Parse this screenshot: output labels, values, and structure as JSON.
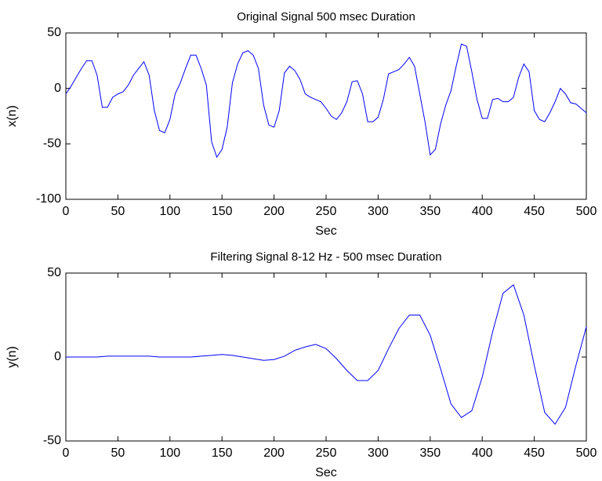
{
  "chart_data": [
    {
      "type": "line",
      "title": "Original Signal  500 msec Duration",
      "x_label": "Sec",
      "y_label": "x(n)",
      "x": [
        0,
        5,
        10,
        15,
        20,
        25,
        30,
        35,
        40,
        45,
        50,
        55,
        60,
        65,
        70,
        75,
        80,
        85,
        90,
        95,
        100,
        105,
        110,
        115,
        120,
        125,
        130,
        135,
        140,
        145,
        150,
        155,
        160,
        165,
        170,
        175,
        180,
        185,
        190,
        195,
        200,
        205,
        210,
        215,
        220,
        225,
        230,
        235,
        240,
        245,
        250,
        255,
        260,
        265,
        270,
        275,
        280,
        285,
        290,
        295,
        300,
        305,
        310,
        315,
        320,
        325,
        330,
        335,
        340,
        345,
        350,
        355,
        360,
        365,
        370,
        375,
        380,
        385,
        390,
        395,
        400,
        405,
        410,
        415,
        420,
        425,
        430,
        435,
        440,
        445,
        450,
        455,
        460,
        465,
        470,
        475,
        480,
        485,
        490,
        495,
        500
      ],
      "series": [
        {
          "color": "#0000ff",
          "values": [
            -5,
            2,
            10,
            18,
            25,
            25,
            12,
            -17,
            -17,
            -8,
            -5,
            -3,
            3,
            12,
            18,
            24,
            12,
            -20,
            -38,
            -40,
            -28,
            -5,
            5,
            18,
            30,
            30,
            18,
            3,
            -48,
            -62,
            -55,
            -35,
            5,
            22,
            32,
            34,
            30,
            18,
            -15,
            -33,
            -35,
            -20,
            14,
            20,
            16,
            8,
            -5,
            -8,
            -10,
            -12,
            -18,
            -25,
            -28,
            -22,
            -12,
            6,
            7,
            -5,
            -30,
            -30,
            -26,
            -10,
            13,
            15,
            17,
            22,
            28,
            20,
            -5,
            -30,
            -60,
            -55,
            -32,
            -15,
            -2,
            20,
            40,
            38,
            15,
            -10,
            -27,
            -27,
            -10,
            -9,
            -12,
            -12,
            -8,
            10,
            22,
            15,
            -20,
            -28,
            -30,
            -22,
            -12,
            0,
            -5,
            -13,
            -14,
            -18,
            -22
          ]
        }
      ],
      "xlim": [
        0,
        500
      ],
      "ylim": [
        -100,
        50
      ],
      "xticks": [
        0,
        50,
        100,
        150,
        200,
        250,
        300,
        350,
        400,
        450,
        500
      ],
      "yticks": [
        -100,
        -50,
        0,
        50
      ]
    },
    {
      "type": "line",
      "title": "Filtering Signal 8-12 Hz - 500 msec Duration",
      "x_label": "Sec",
      "y_label": "y(n)",
      "x": [
        0,
        10,
        20,
        30,
        40,
        50,
        60,
        70,
        80,
        90,
        100,
        110,
        120,
        130,
        140,
        150,
        160,
        170,
        180,
        190,
        200,
        210,
        220,
        230,
        240,
        250,
        260,
        270,
        280,
        290,
        300,
        310,
        320,
        330,
        340,
        350,
        360,
        370,
        380,
        390,
        400,
        410,
        420,
        430,
        440,
        450,
        460,
        470,
        480,
        490,
        500
      ],
      "series": [
        {
          "color": "#0000ff",
          "values": [
            0,
            0,
            0,
            0,
            0.5,
            0.5,
            0.5,
            0.5,
            0.5,
            0,
            0,
            0,
            0,
            0.5,
            1,
            1.5,
            1,
            0,
            -1,
            -2,
            -1.5,
            0.5,
            4,
            6,
            7.5,
            5,
            -1,
            -8,
            -14,
            -14,
            -8,
            5,
            17,
            25,
            25,
            13,
            -7,
            -28,
            -36,
            -32,
            -12,
            15,
            38,
            43,
            25,
            -5,
            -33,
            -40,
            -30,
            -5,
            18
          ]
        }
      ],
      "xlim": [
        0,
        500
      ],
      "ylim": [
        -50,
        50
      ],
      "xticks": [
        0,
        50,
        100,
        150,
        200,
        250,
        300,
        350,
        400,
        450,
        500
      ],
      "yticks": [
        -50,
        0,
        50
      ]
    }
  ]
}
